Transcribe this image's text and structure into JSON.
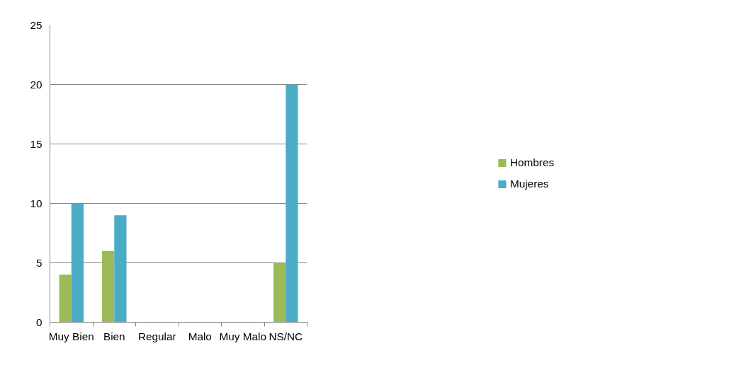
{
  "chart_data": {
    "type": "bar",
    "categories": [
      "Muy Bien",
      "Bien",
      "Regular",
      "Malo",
      "Muy Malo",
      "NS/NC"
    ],
    "series": [
      {
        "name": "Hombres",
        "color": "#9bbb59",
        "values": [
          4,
          6,
          0,
          0,
          0,
          5
        ]
      },
      {
        "name": "Mujeres",
        "color": "#4bacc6",
        "values": [
          10,
          9,
          0,
          0,
          0,
          20
        ]
      }
    ],
    "ylim": [
      0,
      25
    ],
    "yticks": [
      0,
      5,
      10,
      15,
      20,
      25
    ],
    "grid": "y",
    "legend": "right"
  }
}
